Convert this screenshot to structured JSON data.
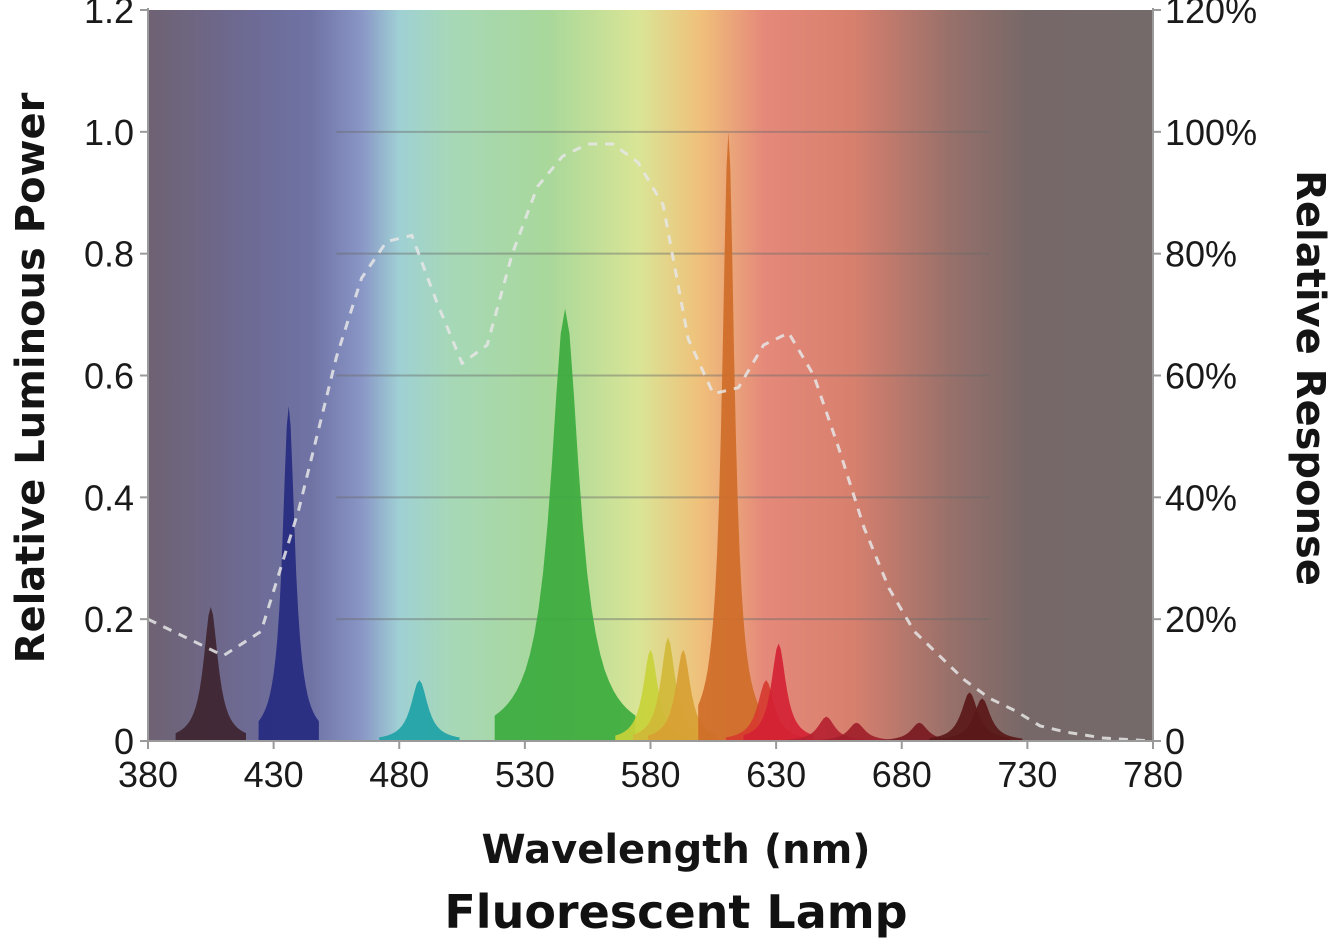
{
  "chart_data": {
    "type": "area",
    "title": "Fluorescent Lamp",
    "xlabel": "Wavelength (nm)",
    "ylabel": "Relative Luminous Power",
    "y2label": "Relative Response",
    "xlim": [
      380,
      780
    ],
    "ylim": [
      0,
      1.2
    ],
    "y2lim": [
      0,
      120
    ],
    "x_ticks": [
      "380",
      "430",
      "480",
      "530",
      "580",
      "630",
      "680",
      "730",
      "780"
    ],
    "y_ticks": [
      "0",
      "0.2",
      "0.4",
      "0.6",
      "0.8",
      "1.0",
      "1.2"
    ],
    "y2_ticks": [
      "0",
      "20%",
      "40%",
      "60%",
      "80%",
      "100%",
      "120%"
    ],
    "grid_y": [
      0.2,
      0.4,
      0.6,
      0.8,
      1.0
    ],
    "background": "visible spectrum color gradient",
    "spectrum_stops": [
      {
        "x": 380,
        "color": "#6e6272"
      },
      {
        "x": 420,
        "color": "#6d6a94"
      },
      {
        "x": 445,
        "color": "#6f73a4"
      },
      {
        "x": 465,
        "color": "#8996c6"
      },
      {
        "x": 480,
        "color": "#9fd0d4"
      },
      {
        "x": 500,
        "color": "#a6d8b8"
      },
      {
        "x": 540,
        "color": "#a9d89a"
      },
      {
        "x": 575,
        "color": "#d9e596"
      },
      {
        "x": 600,
        "color": "#f0c07a"
      },
      {
        "x": 625,
        "color": "#e5897a"
      },
      {
        "x": 660,
        "color": "#d8806e"
      },
      {
        "x": 700,
        "color": "#97706a"
      },
      {
        "x": 730,
        "color": "#766868"
      },
      {
        "x": 780,
        "color": "#756a6a"
      }
    ],
    "series": [
      {
        "style": "filled spikes",
        "peaks": [
          {
            "x": 405,
            "value": 0.22,
            "color": "#3e2430"
          },
          {
            "x": 436,
            "value": 0.55,
            "color": "#252a80"
          },
          {
            "x": 488,
            "value": 0.1,
            "color": "#1ea2a6"
          },
          {
            "x": 546,
            "value": 0.71,
            "color": "#3cab3e"
          },
          {
            "x": 580,
            "value": 0.15,
            "color": "#c8d23a"
          },
          {
            "x": 587,
            "value": 0.17,
            "color": "#d0b838"
          },
          {
            "x": 593,
            "value": 0.15,
            "color": "#d8a033"
          },
          {
            "x": 611,
            "value": 1.0,
            "color": "#cf6d28"
          },
          {
            "x": 626,
            "value": 0.1,
            "color": "#d63a2e"
          },
          {
            "x": 631,
            "value": 0.16,
            "color": "#d42234"
          },
          {
            "x": 650,
            "value": 0.04,
            "color": "#b52231"
          },
          {
            "x": 662,
            "value": 0.03,
            "color": "#a0202a"
          },
          {
            "x": 687,
            "value": 0.03,
            "color": "#7a1a22"
          },
          {
            "x": 707,
            "value": 0.08,
            "color": "#5a1818"
          },
          {
            "x": 712,
            "value": 0.07,
            "color": "#5a1818"
          }
        ]
      },
      {
        "style": "dashed response curve (right axis)",
        "color": "#e6e6e6",
        "x": [
          380,
          395,
          410,
          425,
          440,
          455,
          465,
          475,
          485,
          495,
          505,
          515,
          525,
          535,
          545,
          555,
          565,
          575,
          585,
          595,
          605,
          615,
          625,
          635,
          645,
          655,
          665,
          675,
          685,
          695,
          705,
          715,
          725,
          735,
          745,
          760,
          780
        ],
        "values": [
          20,
          17,
          14,
          18,
          38,
          63,
          76,
          82,
          83,
          72,
          62,
          65,
          80,
          91,
          96,
          98,
          98,
          95,
          88,
          66,
          57,
          58,
          65,
          67,
          60,
          48,
          35,
          25,
          18,
          14,
          10,
          7,
          5,
          2.5,
          1.5,
          0.5,
          0
        ]
      }
    ]
  }
}
